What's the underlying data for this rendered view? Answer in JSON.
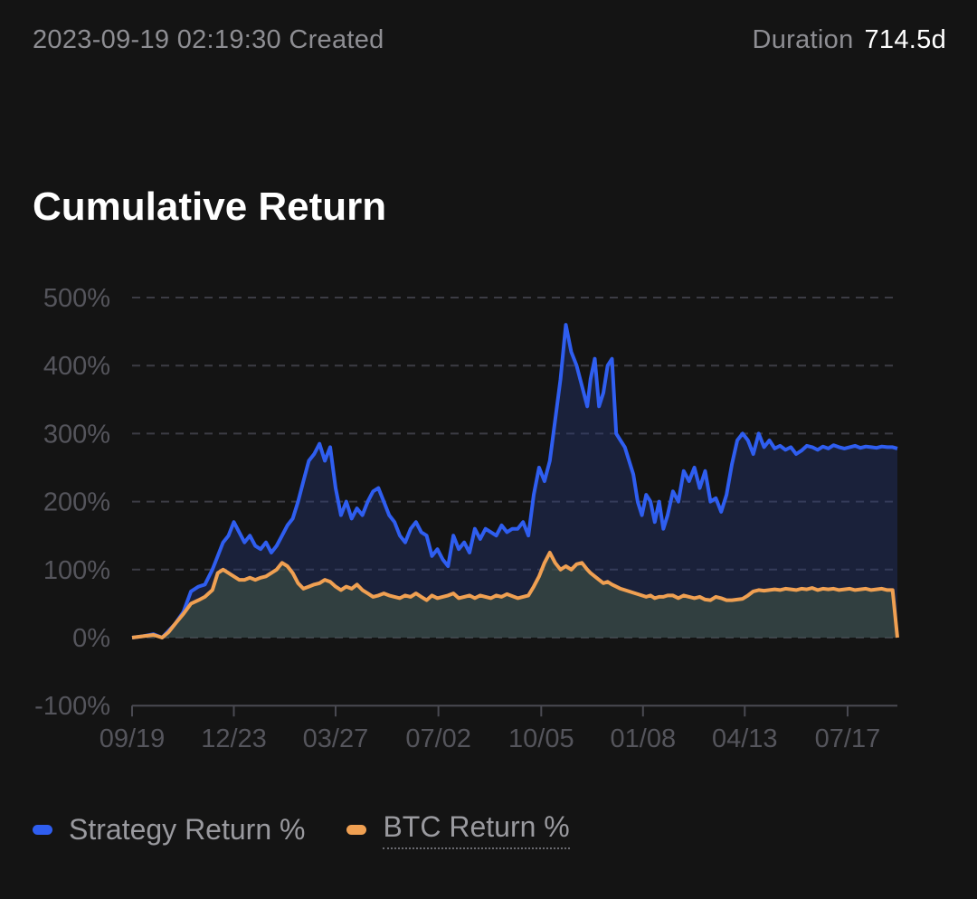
{
  "header": {
    "created_text": "2023-09-19 02:19:30 Created",
    "duration_label": "Duration",
    "duration_value": "714.5d"
  },
  "title": "Cumulative Return",
  "colors": {
    "background": "#141414",
    "strategy": "#2f5ef0",
    "btc": "#f0a052",
    "grid": "#3c3c44",
    "tick_text": "#55555c"
  },
  "legend": {
    "strategy_label": "Strategy Return %",
    "btc_label": "BTC Return %"
  },
  "chart_data": {
    "type": "area",
    "title": "Cumulative Return",
    "xlabel": "",
    "ylabel": "",
    "ylim": [
      -100,
      500
    ],
    "y_ticks": [
      500,
      400,
      300,
      200,
      100,
      0,
      -100
    ],
    "y_tick_labels": [
      "500%",
      "400%",
      "300%",
      "200%",
      "100%",
      "0%",
      "-100%"
    ],
    "x_range": [
      0,
      714.5
    ],
    "x_ticks": [
      0,
      95,
      190,
      286,
      382,
      477,
      572,
      668
    ],
    "x_tick_labels": [
      "09/19",
      "12/23",
      "03/27",
      "07/02",
      "10/05",
      "01/08",
      "04/13",
      "07/17"
    ],
    "grid": true,
    "legend_position": "bottom-left",
    "x": [
      0,
      10,
      20,
      28,
      34,
      40,
      48,
      55,
      62,
      68,
      75,
      80,
      85,
      90,
      95,
      100,
      105,
      110,
      115,
      120,
      125,
      130,
      135,
      140,
      145,
      150,
      155,
      160,
      165,
      170,
      175,
      180,
      185,
      190,
      195,
      200,
      205,
      210,
      215,
      220,
      225,
      230,
      235,
      240,
      245,
      250,
      255,
      260,
      265,
      270,
      275,
      280,
      285,
      290,
      295,
      300,
      305,
      310,
      315,
      320,
      325,
      330,
      335,
      340,
      345,
      350,
      355,
      360,
      365,
      370,
      375,
      380,
      385,
      390,
      395,
      400,
      405,
      410,
      415,
      420,
      425,
      428,
      432,
      436,
      440,
      444,
      448,
      452,
      456,
      460,
      464,
      468,
      472,
      476,
      480,
      484,
      488,
      492,
      496,
      500,
      505,
      510,
      515,
      520,
      525,
      530,
      535,
      540,
      545,
      550,
      555,
      560,
      565,
      570,
      575,
      580,
      585,
      590,
      595,
      600,
      605,
      610,
      615,
      620,
      625,
      630,
      635,
      640,
      645,
      650,
      655,
      660,
      665,
      670,
      675,
      680,
      685,
      690,
      695,
      700,
      705,
      710,
      714.5
    ],
    "series": [
      {
        "name": "Strategy Return %",
        "values": [
          0,
          2,
          5,
          0,
          10,
          20,
          38,
          68,
          75,
          78,
          100,
          120,
          140,
          150,
          170,
          155,
          140,
          150,
          135,
          130,
          140,
          125,
          135,
          150,
          165,
          175,
          200,
          230,
          260,
          270,
          285,
          260,
          280,
          220,
          180,
          200,
          175,
          190,
          180,
          200,
          215,
          220,
          200,
          180,
          170,
          150,
          140,
          160,
          170,
          155,
          150,
          120,
          130,
          115,
          105,
          150,
          130,
          140,
          125,
          160,
          145,
          160,
          155,
          150,
          165,
          155,
          160,
          160,
          170,
          150,
          210,
          250,
          230,
          260,
          320,
          380,
          460,
          420,
          400,
          370,
          340,
          380,
          410,
          340,
          360,
          400,
          410,
          300,
          290,
          280,
          260,
          240,
          200,
          180,
          210,
          200,
          170,
          200,
          160,
          180,
          215,
          200,
          245,
          230,
          250,
          220,
          245,
          200,
          205,
          185,
          210,
          255,
          290,
          300,
          290,
          270,
          300,
          280,
          290,
          278,
          282,
          276,
          280,
          270,
          275,
          282,
          280,
          276,
          281,
          278,
          283,
          280,
          278,
          280,
          282,
          279,
          281,
          280,
          279,
          281,
          280,
          280,
          278
        ],
        "color": "#2f5ef0"
      },
      {
        "name": "BTC Return %",
        "values": [
          0,
          2,
          4,
          0,
          8,
          20,
          35,
          50,
          55,
          60,
          70,
          95,
          100,
          95,
          90,
          85,
          85,
          88,
          85,
          88,
          90,
          95,
          100,
          110,
          105,
          95,
          80,
          72,
          75,
          78,
          80,
          85,
          82,
          75,
          70,
          75,
          72,
          78,
          70,
          65,
          60,
          62,
          65,
          62,
          60,
          58,
          62,
          60,
          65,
          60,
          55,
          62,
          58,
          60,
          62,
          65,
          58,
          60,
          62,
          58,
          62,
          60,
          58,
          62,
          60,
          64,
          61,
          58,
          60,
          62,
          75,
          90,
          110,
          125,
          110,
          100,
          105,
          100,
          108,
          110,
          100,
          95,
          90,
          85,
          80,
          82,
          78,
          75,
          72,
          70,
          68,
          66,
          64,
          62,
          60,
          62,
          58,
          60,
          60,
          62,
          62,
          58,
          62,
          60,
          58,
          60,
          56,
          55,
          60,
          58,
          55,
          55,
          56,
          57,
          62,
          68,
          70,
          69,
          70,
          71,
          70,
          72,
          71,
          70,
          72,
          71,
          73,
          70,
          72,
          71,
          72,
          70,
          71,
          72,
          70,
          71,
          72,
          70,
          71,
          72,
          70,
          70,
          0
        ],
        "color": "#f0a052"
      }
    ]
  }
}
